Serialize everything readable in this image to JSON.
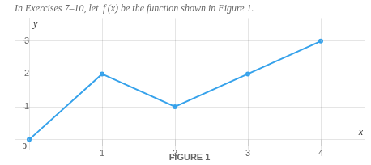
{
  "chart_data": {
    "type": "line",
    "title": "In Exercises 7–10, let  f (x) be the function shown in Figure 1.",
    "subtitle": "FIGURE 1",
    "xlabel": "x",
    "ylabel": "y",
    "x": [
      0,
      1,
      2,
      3,
      4
    ],
    "values": [
      0,
      2,
      1,
      2,
      3
    ],
    "xlim": [
      -0.2,
      4.6
    ],
    "ylim": [
      -0.3,
      3.7
    ],
    "xticks": [
      1,
      2,
      3,
      4
    ],
    "yticks": [
      1,
      2,
      3
    ],
    "grid": true,
    "annotations": [
      {
        "text": "0",
        "x": 0,
        "y": 0
      }
    ]
  }
}
